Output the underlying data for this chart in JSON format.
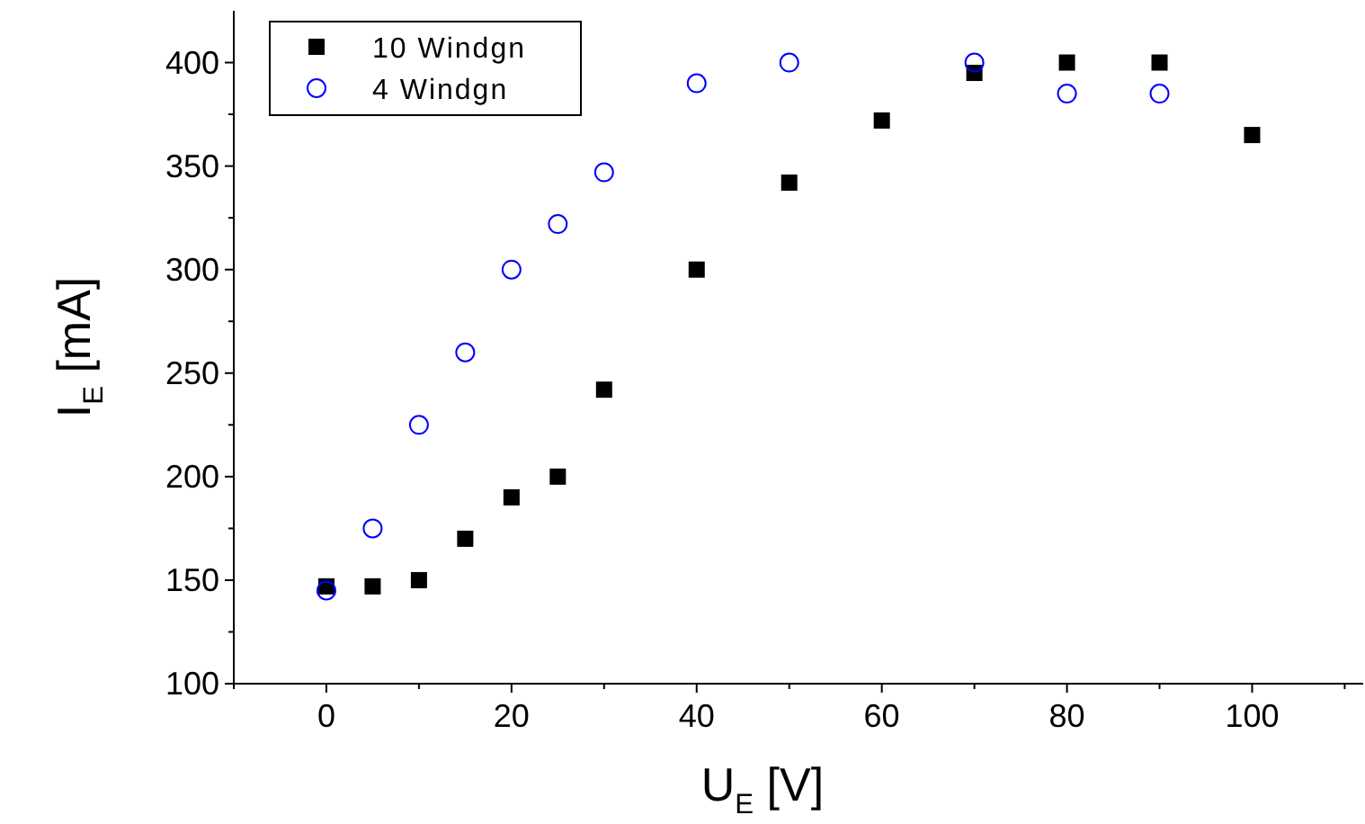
{
  "chart_data": {
    "type": "scatter",
    "xlabel": "U$_{E}$ [V]",
    "ylabel": "I$_{E}$ [mA]",
    "xlim": [
      -10,
      112
    ],
    "ylim": [
      100,
      425
    ],
    "xticks": [
      {
        "value": -10,
        "label": null
      },
      0,
      {
        "value": 10,
        "label": null
      },
      20,
      {
        "value": 30,
        "label": null
      },
      40,
      {
        "value": 50,
        "label": null
      },
      60,
      {
        "value": 70,
        "label": null
      },
      80,
      {
        "value": 90,
        "label": null
      },
      100,
      {
        "value": 110,
        "label": null
      }
    ],
    "yticks": [
      100,
      {
        "value": 125,
        "label": null
      },
      150,
      {
        "value": 175,
        "label": null
      },
      200,
      {
        "value": 225,
        "label": null
      },
      250,
      {
        "value": 275,
        "label": null
      },
      300,
      {
        "value": 325,
        "label": null
      },
      350,
      {
        "value": 375,
        "label": null
      },
      400
    ],
    "grid": false,
    "legend": "top left",
    "series": [
      {
        "name": "10 Windgn",
        "color": "#000000",
        "marker": "square",
        "x": [
          0,
          5,
          10,
          15,
          20,
          25,
          30,
          40,
          50,
          60,
          70,
          80,
          90,
          100
        ],
        "values": [
          147,
          147,
          150,
          170,
          190,
          200,
          242,
          300,
          342,
          372,
          395,
          400,
          400,
          365
        ]
      },
      {
        "name": "4 Windgn",
        "color": "#0000ff",
        "marker": "circle",
        "x": [
          0,
          5,
          10,
          15,
          20,
          25,
          30,
          40,
          50,
          70,
          80,
          90
        ],
        "values": [
          145,
          175,
          225,
          260,
          300,
          322,
          347,
          390,
          400,
          400,
          385,
          385
        ]
      }
    ]
  }
}
